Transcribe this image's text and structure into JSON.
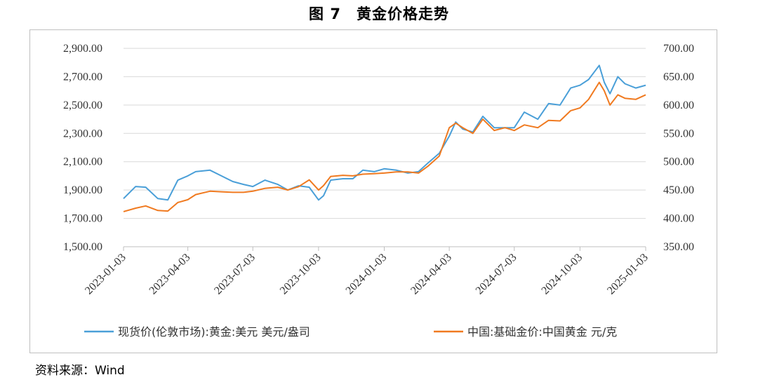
{
  "title": "图 7　黄金价格走势",
  "source": "资料来源：Wind",
  "chart_data": {
    "type": "line",
    "x_ticks": [
      "2023-01-03",
      "2023-04-03",
      "2023-07-03",
      "2023-10-03",
      "2024-01-03",
      "2024-04-03",
      "2024-07-03",
      "2024-10-03",
      "2025-01-03"
    ],
    "y_left": {
      "min": 1500,
      "max": 2900,
      "ticks": [
        "1,500.00",
        "1,700.00",
        "1,900.00",
        "2,100.00",
        "2,300.00",
        "2,500.00",
        "2,700.00",
        "2,900.00"
      ]
    },
    "y_right": {
      "min": 350,
      "max": 700,
      "ticks": [
        "350.00",
        "400.00",
        "450.00",
        "500.00",
        "550.00",
        "600.00",
        "650.00",
        "700.00"
      ]
    },
    "grid": "horizontal",
    "legend_position": "bottom",
    "series": [
      {
        "name": "现货价(伦敦市场):黄金:美元 美元/盎司",
        "axis": "left",
        "color": "#4a9fd8",
        "x": [
          "2023-01-03",
          "2023-01-20",
          "2023-02-03",
          "2023-02-20",
          "2023-03-06",
          "2023-03-20",
          "2023-04-03",
          "2023-04-14",
          "2023-05-04",
          "2023-05-20",
          "2023-06-05",
          "2023-06-20",
          "2023-07-03",
          "2023-07-20",
          "2023-08-07",
          "2023-08-21",
          "2023-09-05",
          "2023-09-20",
          "2023-10-03",
          "2023-10-10",
          "2023-10-20",
          "2023-11-06",
          "2023-11-20",
          "2023-12-04",
          "2023-12-20",
          "2024-01-03",
          "2024-01-20",
          "2024-02-05",
          "2024-02-20",
          "2024-03-04",
          "2024-03-20",
          "2024-04-03",
          "2024-04-12",
          "2024-04-22",
          "2024-05-06",
          "2024-05-20",
          "2024-06-05",
          "2024-06-20",
          "2024-07-03",
          "2024-07-17",
          "2024-08-05",
          "2024-08-20",
          "2024-09-05",
          "2024-09-20",
          "2024-10-03",
          "2024-10-15",
          "2024-10-30",
          "2024-11-06",
          "2024-11-14",
          "2024-11-25",
          "2024-12-05",
          "2024-12-20",
          "2025-01-03"
        ],
        "values": [
          1840,
          1925,
          1920,
          1840,
          1830,
          1970,
          2000,
          2030,
          2040,
          2000,
          1960,
          1940,
          1925,
          1970,
          1940,
          1900,
          1930,
          1920,
          1830,
          1860,
          1970,
          1980,
          1980,
          2040,
          2030,
          2050,
          2040,
          2020,
          2030,
          2090,
          2160,
          2280,
          2380,
          2330,
          2310,
          2420,
          2340,
          2340,
          2340,
          2450,
          2400,
          2510,
          2500,
          2620,
          2640,
          2680,
          2780,
          2660,
          2580,
          2700,
          2650,
          2620,
          2640
        ]
      },
      {
        "name": "中国:基础金价:中国黄金 元/克",
        "axis": "right",
        "color": "#f07a20",
        "x": [
          "2023-01-03",
          "2023-01-20",
          "2023-02-03",
          "2023-02-20",
          "2023-03-06",
          "2023-03-20",
          "2023-04-03",
          "2023-04-14",
          "2023-05-04",
          "2023-05-20",
          "2023-06-05",
          "2023-06-20",
          "2023-07-03",
          "2023-07-20",
          "2023-08-07",
          "2023-08-21",
          "2023-09-05",
          "2023-09-20",
          "2023-10-03",
          "2023-10-10",
          "2023-10-20",
          "2023-11-06",
          "2023-11-20",
          "2023-12-04",
          "2023-12-20",
          "2024-01-03",
          "2024-01-20",
          "2024-02-05",
          "2024-02-20",
          "2024-03-04",
          "2024-03-20",
          "2024-04-03",
          "2024-04-12",
          "2024-04-22",
          "2024-05-06",
          "2024-05-20",
          "2024-06-05",
          "2024-06-20",
          "2024-07-03",
          "2024-07-17",
          "2024-08-05",
          "2024-08-20",
          "2024-09-05",
          "2024-09-20",
          "2024-10-03",
          "2024-10-15",
          "2024-10-30",
          "2024-11-06",
          "2024-11-14",
          "2024-11-25",
          "2024-12-05",
          "2024-12-20",
          "2025-01-03"
        ],
        "values": [
          412,
          418,
          422,
          414,
          413,
          428,
          433,
          442,
          448,
          447,
          446,
          446,
          448,
          453,
          455,
          450,
          456,
          468,
          450,
          458,
          474,
          476,
          475,
          478,
          479,
          480,
          482,
          482,
          480,
          492,
          510,
          560,
          568,
          560,
          550,
          575,
          555,
          560,
          555,
          565,
          560,
          573,
          572,
          590,
          595,
          610,
          640,
          625,
          600,
          618,
          612,
          610,
          618
        ]
      }
    ]
  }
}
